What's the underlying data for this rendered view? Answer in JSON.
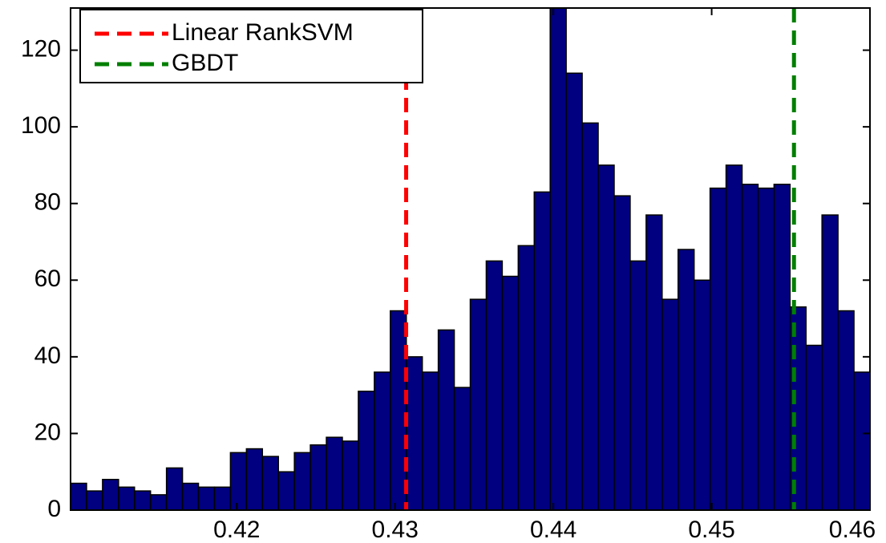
{
  "chart_data": {
    "type": "histogram",
    "bins": [
      0.4095,
      0.41051,
      0.41152,
      0.41253,
      0.41354,
      0.41455,
      0.41556,
      0.41657,
      0.41758,
      0.41859,
      0.4196,
      0.42061,
      0.42162,
      0.42263,
      0.42364,
      0.42465,
      0.42566,
      0.42667,
      0.42768,
      0.42869,
      0.4297,
      0.43071,
      0.43172,
      0.43273,
      0.43374,
      0.43475,
      0.43576,
      0.43677,
      0.43778,
      0.43879,
      0.4398,
      0.44081,
      0.44182,
      0.44283,
      0.44384,
      0.44485,
      0.44586,
      0.44687,
      0.44788,
      0.44889,
      0.4499,
      0.45091,
      0.45192,
      0.45293,
      0.45394,
      0.45495,
      0.45596,
      0.45697,
      0.45798,
      0.45899,
      0.46
    ],
    "counts": [
      7,
      5,
      8,
      6,
      5,
      4,
      11,
      7,
      6,
      6,
      15,
      16,
      14,
      10,
      15,
      17,
      19,
      18,
      31,
      36,
      52,
      40,
      36,
      47,
      32,
      55,
      65,
      61,
      69,
      83,
      131,
      114,
      101,
      90,
      82,
      65,
      77,
      55,
      68,
      60,
      84,
      90,
      85,
      84,
      85,
      53,
      43,
      77,
      52,
      36
    ],
    "color": "#000080",
    "xlim": [
      0.4095,
      0.46
    ],
    "ylim": [
      0,
      131
    ],
    "xticks": [
      0.42,
      0.43,
      0.44,
      0.45,
      0.46
    ],
    "yticks": [
      0,
      20,
      40,
      60,
      80,
      100,
      120
    ],
    "lines": [
      {
        "name": "Linear RankSVM",
        "x": 0.4307,
        "color": "#ff0000"
      },
      {
        "name": "GBDT",
        "x": 0.4552,
        "color": "#007f00"
      }
    ],
    "legend": "upper left"
  }
}
